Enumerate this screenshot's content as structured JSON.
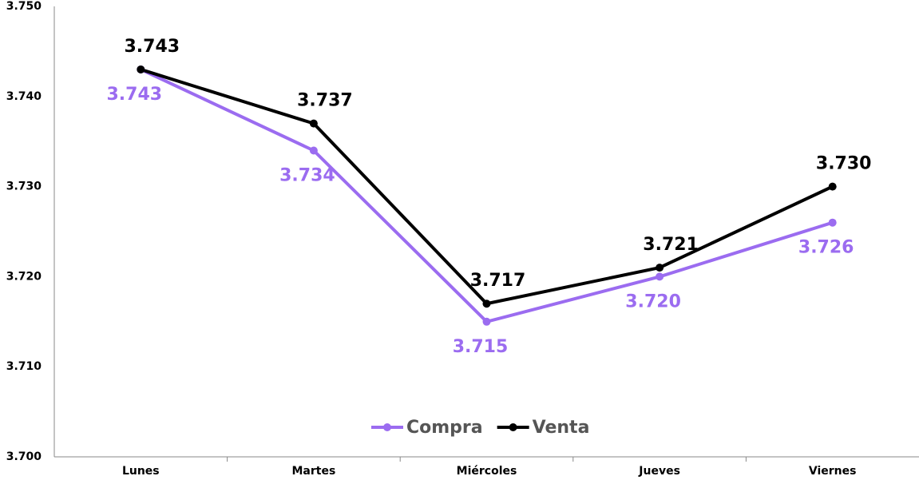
{
  "chart_data": {
    "type": "line",
    "categories": [
      "Lunes",
      "Martes",
      "Miércoles",
      "Jueves",
      "Viernes"
    ],
    "series": [
      {
        "name": "Compra",
        "color": "#9b6cf0",
        "values": [
          3.743,
          3.734,
          3.715,
          3.72,
          3.726
        ],
        "value_labels": [
          "3.743",
          "3.734",
          "3.715",
          "3.720",
          "3.726"
        ]
      },
      {
        "name": "Venta",
        "color": "#000000",
        "values": [
          3.743,
          3.737,
          3.717,
          3.721,
          3.73
        ],
        "value_labels": [
          "3.743",
          "3.737",
          "3.717",
          "3.721",
          "3.730"
        ]
      }
    ],
    "ylim": [
      3.7,
      3.75
    ],
    "yticks": [
      {
        "value": 3.7,
        "label": "3.700"
      },
      {
        "value": 3.71,
        "label": "3.710"
      },
      {
        "value": 3.72,
        "label": "3.720"
      },
      {
        "value": 3.73,
        "label": "3.730"
      },
      {
        "value": 3.74,
        "label": "3.740"
      },
      {
        "value": 3.75,
        "label": "3.750"
      }
    ],
    "grid": false,
    "legend": "bottom"
  }
}
